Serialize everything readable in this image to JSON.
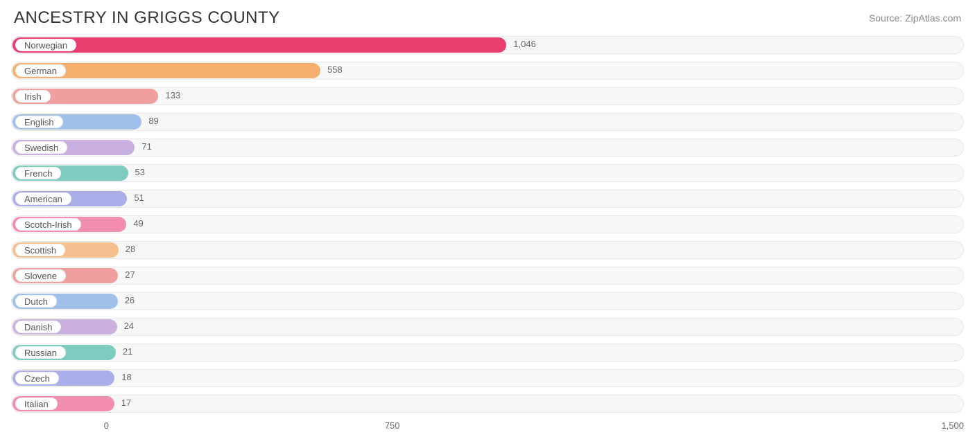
{
  "header": {
    "title": "ANCESTRY IN GRIGGS COUNTY",
    "source": "Source: ZipAtlas.com"
  },
  "chart": {
    "type": "bar",
    "orientation": "horizontal",
    "max_value": 1500,
    "label_offset_base": 150,
    "label_scale": 0.6,
    "track_color": "#f7f7f7",
    "track_border": "#e8e8e8",
    "text_color": "#666666",
    "title_color": "#333333",
    "bars": [
      {
        "label": "Norwegian",
        "value": 1046,
        "display": "1,046",
        "color": "#e83e70"
      },
      {
        "label": "German",
        "value": 558,
        "display": "558",
        "color": "#f5b06e"
      },
      {
        "label": "Irish",
        "value": 133,
        "display": "133",
        "color": "#f19e9e"
      },
      {
        "label": "English",
        "value": 89,
        "display": "89",
        "color": "#9fc0e8"
      },
      {
        "label": "Swedish",
        "value": 71,
        "display": "71",
        "color": "#c9b0e0"
      },
      {
        "label": "French",
        "value": 53,
        "display": "53",
        "color": "#80cbc0"
      },
      {
        "label": "American",
        "value": 51,
        "display": "51",
        "color": "#a9aee8"
      },
      {
        "label": "Scotch-Irish",
        "value": 49,
        "display": "49",
        "color": "#f28db2"
      },
      {
        "label": "Scottish",
        "value": 28,
        "display": "28",
        "color": "#f5c08e"
      },
      {
        "label": "Slovene",
        "value": 27,
        "display": "27",
        "color": "#f19e9e"
      },
      {
        "label": "Dutch",
        "value": 26,
        "display": "26",
        "color": "#9fc0e8"
      },
      {
        "label": "Danish",
        "value": 24,
        "display": "24",
        "color": "#c9b0e0"
      },
      {
        "label": "Russian",
        "value": 21,
        "display": "21",
        "color": "#80cbc0"
      },
      {
        "label": "Czech",
        "value": 18,
        "display": "18",
        "color": "#a9aee8"
      },
      {
        "label": "Italian",
        "value": 17,
        "display": "17",
        "color": "#f28db2"
      }
    ],
    "axis_ticks": [
      {
        "value": 0,
        "label": "0"
      },
      {
        "value": 750,
        "label": "750"
      },
      {
        "value": 1500,
        "label": "1,500"
      }
    ]
  }
}
